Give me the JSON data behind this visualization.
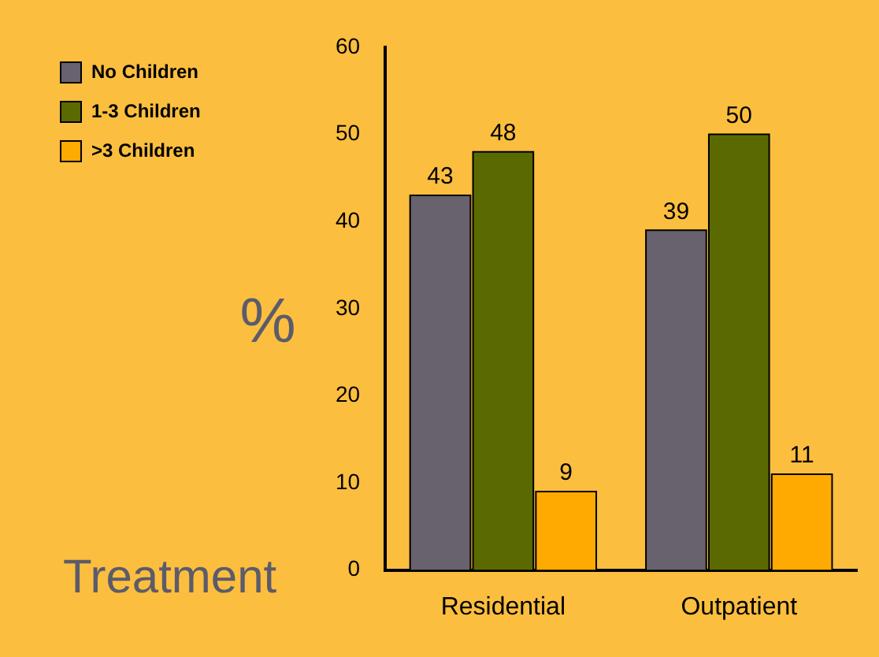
{
  "chart_data": {
    "type": "bar",
    "xlabel": "Treatment",
    "ylabel": "%",
    "categories": [
      "Residential",
      "Outpatient"
    ],
    "series": [
      {
        "name": "No Children",
        "color": "#67626e",
        "values": [
          43,
          39
        ]
      },
      {
        "name": "1-3 Children",
        "color": "#5a6a00",
        "values": [
          48,
          50
        ]
      },
      {
        "name": ">3 Children",
        "color": "#ffaa00",
        "values": [
          9,
          11
        ]
      }
    ],
    "ylim": [
      0,
      60
    ],
    "yticks": [
      0,
      10,
      20,
      30,
      40,
      50,
      60
    ],
    "grid": false,
    "legend": "top left",
    "data_labels": true
  }
}
